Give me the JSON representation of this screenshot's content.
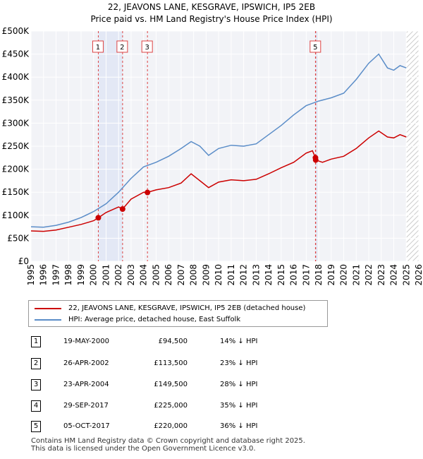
{
  "title_line1": "22, JEAVONS LANE, KESGRAVE, IPSWICH, IP5 2EB",
  "title_line2": "Price paid vs. HM Land Registry's House Price Index (HPI)",
  "chart_data": {
    "type": "line",
    "x_range": [
      1995,
      2026
    ],
    "ylim": [
      0,
      500000
    ],
    "y_ticks": [
      {
        "value": 0,
        "label": "£0"
      },
      {
        "value": 50000,
        "label": "£50K"
      },
      {
        "value": 100000,
        "label": "£100K"
      },
      {
        "value": 150000,
        "label": "£150K"
      },
      {
        "value": 200000,
        "label": "£200K"
      },
      {
        "value": 250000,
        "label": "£250K"
      },
      {
        "value": 300000,
        "label": "£300K"
      },
      {
        "value": 350000,
        "label": "£350K"
      },
      {
        "value": 400000,
        "label": "£400K"
      },
      {
        "value": 450000,
        "label": "£450K"
      },
      {
        "value": 500000,
        "label": "£500K"
      }
    ],
    "x_ticks": [
      "1995",
      "1996",
      "1997",
      "1998",
      "1999",
      "2000",
      "2001",
      "2002",
      "2003",
      "2004",
      "2005",
      "2006",
      "2007",
      "2008",
      "2009",
      "2010",
      "2011",
      "2012",
      "2013",
      "2014",
      "2015",
      "2016",
      "2017",
      "2018",
      "2019",
      "2020",
      "2021",
      "2022",
      "2023",
      "2024",
      "2025",
      "2026"
    ],
    "grid": true,
    "shaded_bands": [
      [
        2000.38,
        2002.32
      ],
      [
        2017.74,
        2017.76
      ]
    ],
    "future_hatch_from": 2025.0,
    "series": [
      {
        "name": "22, JEAVONS LANE, KESGRAVE, IPSWICH, IP5 2EB (detached house)",
        "color": "#cc0000",
        "points": [
          [
            1995.0,
            66000
          ],
          [
            1996.0,
            65000
          ],
          [
            1997.0,
            68000
          ],
          [
            1998.0,
            74000
          ],
          [
            1999.0,
            80000
          ],
          [
            2000.0,
            88000
          ],
          [
            2000.38,
            94500
          ],
          [
            2001.0,
            106000
          ],
          [
            2002.0,
            118000
          ],
          [
            2002.32,
            113500
          ],
          [
            2003.0,
            135000
          ],
          [
            2004.0,
            150000
          ],
          [
            2004.3,
            149500
          ],
          [
            2005.0,
            155000
          ],
          [
            2006.0,
            160000
          ],
          [
            2007.0,
            170000
          ],
          [
            2007.8,
            190000
          ],
          [
            2008.5,
            175000
          ],
          [
            2009.2,
            160000
          ],
          [
            2010.0,
            172000
          ],
          [
            2011.0,
            177000
          ],
          [
            2012.0,
            175000
          ],
          [
            2013.0,
            178000
          ],
          [
            2014.0,
            190000
          ],
          [
            2015.0,
            203000
          ],
          [
            2016.0,
            215000
          ],
          [
            2017.0,
            235000
          ],
          [
            2017.5,
            240000
          ],
          [
            2017.74,
            225000
          ],
          [
            2017.76,
            220000
          ],
          [
            2018.3,
            215000
          ],
          [
            2019.0,
            222000
          ],
          [
            2020.0,
            228000
          ],
          [
            2021.0,
            245000
          ],
          [
            2022.0,
            268000
          ],
          [
            2022.8,
            283000
          ],
          [
            2023.5,
            270000
          ],
          [
            2024.0,
            268000
          ],
          [
            2024.5,
            275000
          ],
          [
            2025.0,
            270000
          ]
        ]
      },
      {
        "name": "HPI: Average price, detached house, East Suffolk",
        "color": "#5b8dc8",
        "points": [
          [
            1995.0,
            75000
          ],
          [
            1996.0,
            74000
          ],
          [
            1997.0,
            78000
          ],
          [
            1998.0,
            85000
          ],
          [
            1999.0,
            95000
          ],
          [
            2000.0,
            108000
          ],
          [
            2001.0,
            125000
          ],
          [
            2002.0,
            150000
          ],
          [
            2003.0,
            180000
          ],
          [
            2004.0,
            205000
          ],
          [
            2005.0,
            215000
          ],
          [
            2006.0,
            228000
          ],
          [
            2007.0,
            245000
          ],
          [
            2007.8,
            260000
          ],
          [
            2008.5,
            250000
          ],
          [
            2009.2,
            230000
          ],
          [
            2010.0,
            245000
          ],
          [
            2011.0,
            252000
          ],
          [
            2012.0,
            250000
          ],
          [
            2013.0,
            255000
          ],
          [
            2014.0,
            275000
          ],
          [
            2015.0,
            295000
          ],
          [
            2016.0,
            318000
          ],
          [
            2017.0,
            338000
          ],
          [
            2018.0,
            348000
          ],
          [
            2019.0,
            355000
          ],
          [
            2020.0,
            365000
          ],
          [
            2021.0,
            395000
          ],
          [
            2022.0,
            430000
          ],
          [
            2022.8,
            450000
          ],
          [
            2023.5,
            420000
          ],
          [
            2024.0,
            415000
          ],
          [
            2024.5,
            425000
          ],
          [
            2025.0,
            420000
          ]
        ]
      }
    ],
    "markers": [
      {
        "id": "1",
        "x": 2000.38,
        "y": 94500
      },
      {
        "id": "2",
        "x": 2002.32,
        "y": 113500
      },
      {
        "id": "3",
        "x": 2004.31,
        "y": 149500
      },
      {
        "id": "4",
        "x": 2017.74,
        "y": 225000
      },
      {
        "id": "5",
        "x": 2017.76,
        "y": 220000
      }
    ],
    "top_labels": [
      {
        "id": "1",
        "x": 2000.38
      },
      {
        "id": "2",
        "x": 2002.32
      },
      {
        "id": "3",
        "x": 2004.31
      },
      {
        "id": "5",
        "x": 2017.76
      }
    ]
  },
  "legend": [
    {
      "label": "22, JEAVONS LANE, KESGRAVE, IPSWICH, IP5 2EB (detached house)",
      "color": "#cc0000"
    },
    {
      "label": "HPI: Average price, detached house, East Suffolk",
      "color": "#5b8dc8"
    }
  ],
  "transactions": [
    {
      "num": "1",
      "date": "19-MAY-2000",
      "price": "£94,500",
      "hpi": "14% ↓ HPI"
    },
    {
      "num": "2",
      "date": "26-APR-2002",
      "price": "£113,500",
      "hpi": "23% ↓ HPI"
    },
    {
      "num": "3",
      "date": "23-APR-2004",
      "price": "£149,500",
      "hpi": "28% ↓ HPI"
    },
    {
      "num": "4",
      "date": "29-SEP-2017",
      "price": "£225,000",
      "hpi": "35% ↓ HPI"
    },
    {
      "num": "5",
      "date": "05-OCT-2017",
      "price": "£220,000",
      "hpi": "36% ↓ HPI"
    }
  ],
  "footer_line1": "Contains HM Land Registry data © Crown copyright and database right 2025.",
  "footer_line2": "This data is licensed under the Open Government Licence v3.0."
}
